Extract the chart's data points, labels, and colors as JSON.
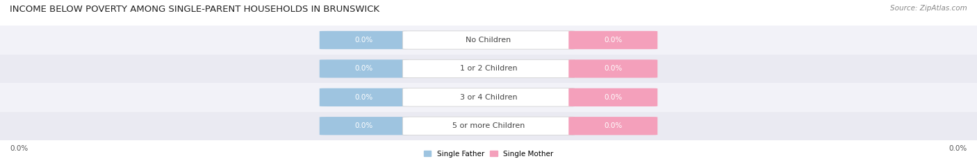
{
  "title": "INCOME BELOW POVERTY AMONG SINGLE-PARENT HOUSEHOLDS IN BRUNSWICK",
  "source": "Source: ZipAtlas.com",
  "categories": [
    "No Children",
    "1 or 2 Children",
    "3 or 4 Children",
    "5 or more Children"
  ],
  "single_father_values": [
    "0.0%",
    "0.0%",
    "0.0%",
    "0.0%"
  ],
  "single_mother_values": [
    "0.0%",
    "0.0%",
    "0.0%",
    "0.0%"
  ],
  "father_color": "#9ec4e0",
  "mother_color": "#f4a0bb",
  "bar_bg_color": "#e6e6ee",
  "title_fontsize": 9.5,
  "label_fontsize": 7.5,
  "source_fontsize": 7.5,
  "axis_label_left": "0.0%",
  "axis_label_right": "0.0%",
  "legend_father": "Single Father",
  "legend_mother": "Single Mother",
  "background_color": "#ffffff",
  "value_label_color": "#ffffff",
  "category_label_color": "#444444",
  "bar_row_bg": "#f0f0f5"
}
